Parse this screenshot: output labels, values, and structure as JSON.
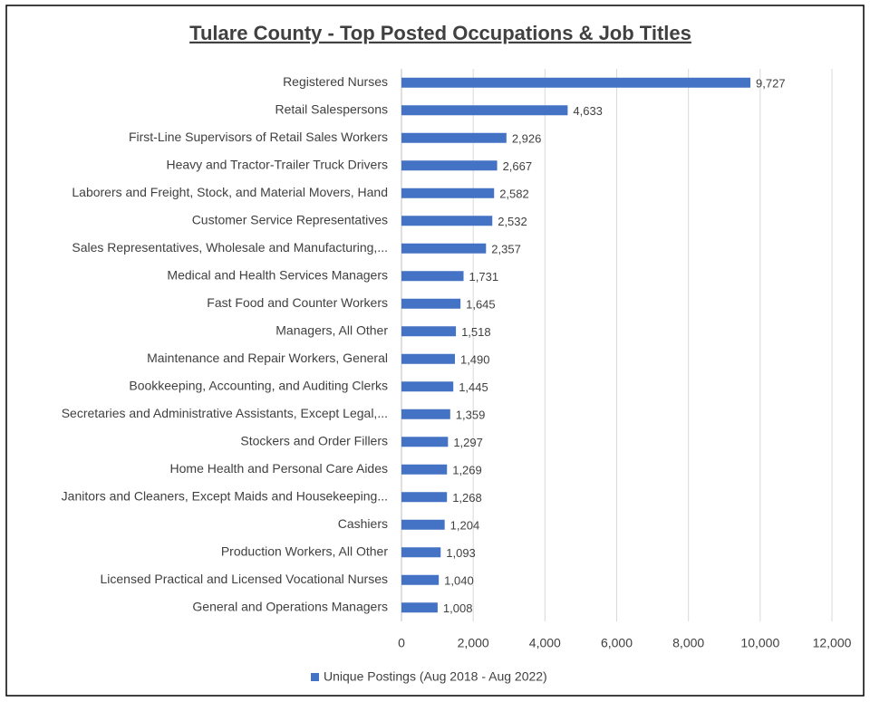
{
  "chart_data": {
    "type": "bar",
    "orientation": "horizontal",
    "title": "Tulare County - Top Posted Occupations & Job Titles",
    "categories": [
      "Registered Nurses",
      "Retail Salespersons",
      "First-Line Supervisors of Retail Sales Workers",
      "Heavy and Tractor-Trailer Truck Drivers",
      "Laborers and Freight, Stock, and Material Movers, Hand",
      "Customer Service Representatives",
      "Sales Representatives, Wholesale and Manufacturing,...",
      "Medical and Health Services Managers",
      "Fast Food and Counter Workers",
      "Managers, All Other",
      "Maintenance and Repair Workers, General",
      "Bookkeeping, Accounting, and Auditing Clerks",
      "Secretaries and Administrative Assistants, Except Legal,...",
      "Stockers and Order Fillers",
      "Home Health and Personal Care Aides",
      "Janitors and Cleaners, Except Maids and Housekeeping...",
      "Cashiers",
      "Production Workers, All Other",
      "Licensed Practical and Licensed Vocational Nurses",
      "General and Operations Managers"
    ],
    "series": [
      {
        "name": "Unique Postings (Aug 2018 - Aug 2022)",
        "color": "#4472c4",
        "values": [
          9727,
          4633,
          2926,
          2667,
          2582,
          2532,
          2357,
          1731,
          1645,
          1518,
          1490,
          1445,
          1359,
          1297,
          1269,
          1268,
          1204,
          1093,
          1040,
          1008
        ],
        "value_labels": [
          "9,727",
          "4,633",
          "2,926",
          "2,667",
          "2,582",
          "2,532",
          "2,357",
          "1,731",
          "1,645",
          "1,518",
          "1,490",
          "1,445",
          "1,359",
          "1,297",
          "1,269",
          "1,268",
          "1,204",
          "1,093",
          "1,040",
          "1,008"
        ]
      }
    ],
    "xlim": [
      0,
      12000
    ],
    "xticks": [
      0,
      {
        "value": 2000,
        "label": "2,000"
      },
      {
        "value": 4000,
        "label": "4,000"
      },
      {
        "value": 6000,
        "label": "6,000"
      },
      {
        "value": 8000,
        "label": "8,000"
      },
      {
        "value": 10000,
        "label": "10,000"
      },
      {
        "value": 12000,
        "label": "12,000"
      }
    ],
    "grid": true,
    "legend": "bottom"
  }
}
